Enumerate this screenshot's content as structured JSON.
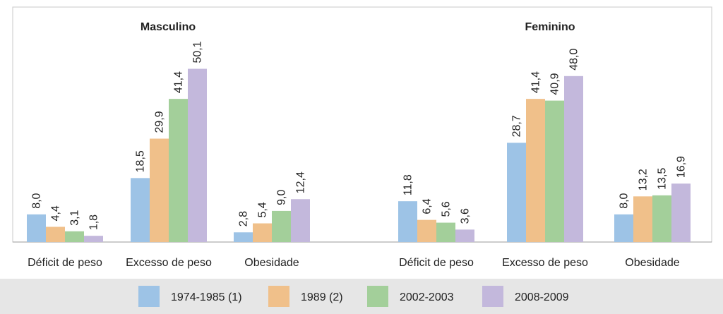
{
  "chart_data": {
    "type": "bar",
    "panel_titles": [
      "Masculino",
      "Feminino"
    ],
    "categories": [
      "Déficit de peso",
      "Excesso de peso",
      "Obesidade",
      "Déficit de peso",
      "Excesso de peso",
      "Obesidade"
    ],
    "series": [
      {
        "name": "1974-1985 (1)",
        "color": "#9dc3e6",
        "values": [
          8.0,
          18.5,
          2.8,
          11.8,
          28.7,
          8.0
        ],
        "value_labels": [
          "8,0",
          "18,5",
          "2,8",
          "11,8",
          "28,7",
          "8,0"
        ]
      },
      {
        "name": "1989 (2)",
        "color": "#f0c08a",
        "values": [
          4.4,
          29.9,
          5.4,
          6.4,
          41.4,
          13.2
        ],
        "value_labels": [
          "4,4",
          "29,9",
          "5,4",
          "6,4",
          "41,4",
          "13,2"
        ]
      },
      {
        "name": "2002-2003",
        "color": "#a3cf9a",
        "values": [
          3.1,
          41.4,
          9.0,
          5.6,
          40.9,
          13.5
        ],
        "value_labels": [
          "3,1",
          "41,4",
          "9,0",
          "5,6",
          "40,9",
          "13,5"
        ]
      },
      {
        "name": "2008-2009",
        "color": "#c3b8dc",
        "values": [
          1.8,
          50.1,
          12.4,
          3.6,
          48.0,
          16.9
        ],
        "value_labels": [
          "1,8",
          "50,1",
          "12,4",
          "3,6",
          "48,0",
          "16,9"
        ]
      }
    ]
  }
}
